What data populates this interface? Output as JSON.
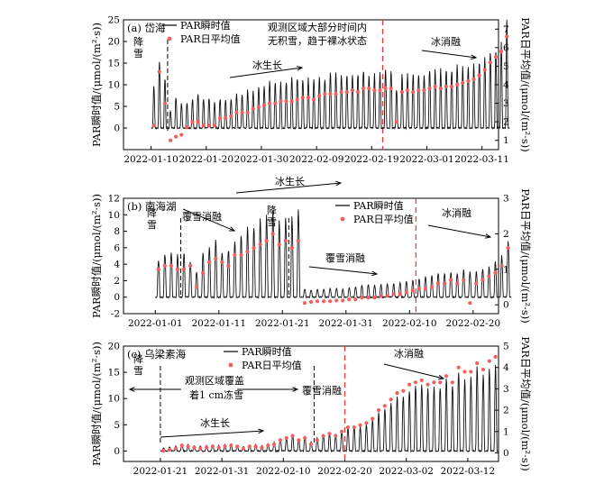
{
  "chart_data": [
    {
      "panel": "(a) 岱海",
      "type": "line",
      "ylabel_left": "PAR瞬时值/(μmol/(m²·s))",
      "ylabel_right": "PAR日平均值/(μmol/(m²·s))",
      "xlim": [
        "2022-01-05",
        "2022-03-14"
      ],
      "xticks": [
        "2022-01-10",
        "2022-01-20",
        "2022-01-30",
        "2022-02-09",
        "2022-02-19",
        "2022-03-01",
        "2022-03-11"
      ],
      "ylim_left": [
        -5,
        25
      ],
      "yticks_left": [
        0,
        5,
        10,
        15,
        20,
        25
      ],
      "ylim_right": [
        0.5,
        7.5
      ],
      "yticks_right": [
        1,
        2,
        3,
        4,
        5,
        6,
        7
      ],
      "start": "2022-01-10",
      "daily_peak": [
        10,
        16,
        12,
        4,
        7,
        6,
        6,
        7,
        8,
        7,
        7,
        6,
        7,
        7,
        7,
        8,
        8,
        9,
        9,
        10,
        10,
        11,
        11,
        11,
        11,
        12,
        12,
        12,
        12,
        12,
        12,
        12,
        13,
        13,
        13,
        13,
        13,
        13,
        14,
        13,
        13,
        13,
        14,
        14,
        9,
        13,
        13,
        13,
        13,
        13,
        14,
        14,
        14,
        14,
        14,
        15,
        15,
        15,
        15,
        16,
        17,
        18,
        19,
        20,
        26
      ],
      "daily_mean": [
        1.8,
        4.7,
        3.0,
        1.0,
        1.2,
        1.3,
        1.7,
        2.0,
        2.0,
        1.8,
        1.8,
        1.8,
        2.2,
        2.2,
        2.3,
        2.5,
        2.5,
        2.5,
        2.7,
        2.8,
        2.9,
        3.0,
        3.0,
        3.1,
        3.1,
        3.1,
        3.2,
        3.3,
        3.3,
        3.2,
        3.4,
        3.5,
        3.5,
        3.5,
        3.6,
        3.6,
        3.7,
        3.6,
        3.8,
        3.8,
        3.7,
        3.7,
        3.8,
        3.8,
        2.0,
        3.6,
        3.7,
        3.6,
        3.7,
        3.7,
        3.8,
        3.9,
        3.8,
        3.9,
        3.9,
        4.0,
        4.1,
        4.2,
        4.3,
        4.5,
        4.8,
        5.2,
        5.5,
        5.8,
        6.6
      ],
      "legend": [
        "PAR瞬时值",
        "PAR日平均值"
      ],
      "annotations": {
        "snow": "降雪",
        "growth": "冰生长",
        "note_line1": "观测区域大部分时间内",
        "note_line2": "无积雪，趋于裸冰状态",
        "melt": "冰消融"
      },
      "event_lines": {
        "black_dashed": [
          "2022-01-13"
        ],
        "red_dashed": [
          "2022-02-21"
        ]
      }
    },
    {
      "panel": "(b) 南海湖",
      "type": "line",
      "ylabel_left": "PAR瞬时值/(μmol/(m²·s))",
      "ylabel_right": "PAR日平均值/(μmol/(m²·s))",
      "xlim": [
        "2021-12-27",
        "2022-02-24"
      ],
      "xticks": [
        "2022-01-01",
        "2022-01-11",
        "2022-01-21",
        "2022-01-31",
        "2022-02-10",
        "2022-02-20"
      ],
      "ylim_left": [
        -2,
        12
      ],
      "yticks_left": [
        -2,
        0,
        2,
        4,
        6,
        8,
        10,
        12
      ],
      "ylim_right": [
        -0.25,
        3
      ],
      "yticks_right": [
        0,
        1,
        2,
        3
      ],
      "start": "2022-01-01",
      "daily_peak": [
        4.8,
        5.6,
        5.5,
        5.3,
        5.6,
        4.6,
        3.2,
        5.4,
        6.5,
        7.2,
        5.8,
        6.0,
        6.9,
        7.6,
        8.7,
        8.6,
        9.6,
        10.4,
        10.8,
        9.4,
        10.2,
        10.0,
        11.0,
        1.0,
        0.9,
        1.0,
        1.0,
        1.1,
        1.1,
        1.0,
        1.2,
        1.3,
        1.5,
        1.6,
        1.5,
        1.6,
        1.7,
        1.7,
        1.8,
        2.0,
        2.1,
        2.3,
        2.6,
        2.8,
        3.0,
        3.0,
        3.2,
        3.0,
        3.4,
        3.2,
        3.3,
        3.6,
        3.8,
        4.6,
        5.2,
        7.1
      ],
      "daily_mean": [
        1.0,
        1.1,
        1.1,
        1.0,
        1.0,
        1.1,
        0.5,
        0.9,
        1.2,
        1.3,
        1.2,
        1.1,
        1.4,
        1.4,
        1.5,
        1.6,
        1.7,
        1.8,
        2.0,
        1.7,
        1.8,
        1.6,
        1.8,
        0.05,
        0.08,
        0.1,
        0.1,
        0.1,
        0.12,
        0.12,
        0.15,
        0.15,
        0.2,
        0.2,
        0.2,
        0.25,
        0.25,
        0.3,
        0.3,
        0.35,
        0.4,
        0.45,
        0.45,
        0.5,
        0.6,
        0.6,
        0.7,
        0.6,
        0.7,
        0.05,
        0.6,
        0.7,
        0.8,
        0.9,
        1.1,
        1.6
      ],
      "legend": [
        "PAR瞬时值",
        "PAR日平均值"
      ],
      "annotations": {
        "snow1": "降雪",
        "snowmelt1": "覆雪消融",
        "growth": "冰生长",
        "snow2": "降雪",
        "snowmelt2": "覆雪消融",
        "melt": "冰消融"
      },
      "event_lines": {
        "black_dashed": [
          "2022-01-05",
          "2022-01-22"
        ],
        "red_dashed": [
          "2022-02-11"
        ]
      }
    },
    {
      "panel": "(c) 乌梁素海",
      "type": "line",
      "ylabel_left": "PAR瞬时值/(μmol/(m²·s))",
      "ylabel_right": "PAR日平均值/(μmol/(m²·s))",
      "xlim": [
        "2022-01-15",
        "2022-03-17"
      ],
      "xticks": [
        "2022-01-21",
        "2022-01-31",
        "2022-02-10",
        "2022-02-20",
        "2022-03-02",
        "2022-03-12"
      ],
      "ylim_left": [
        -2,
        20
      ],
      "yticks_left": [
        0,
        5,
        10,
        15,
        20
      ],
      "ylim_right": [
        -0.4,
        5
      ],
      "yticks_right": [
        0,
        1,
        2,
        3,
        4,
        5
      ],
      "start": "2022-01-21",
      "daily_peak": [
        0.6,
        0.8,
        1.0,
        1.4,
        1.3,
        1.0,
        1.0,
        1.1,
        1.2,
        1.1,
        1.3,
        1.5,
        1.2,
        0.9,
        1.2,
        1.3,
        1.1,
        1.5,
        1.7,
        2.5,
        2.6,
        3.2,
        2.4,
        2.9,
        1.8,
        2.6,
        3.2,
        3.6,
        3.2,
        4.0,
        4.5,
        4.6,
        4.8,
        5.3,
        6.3,
        7.5,
        8.5,
        9.6,
        10.8,
        11.2,
        12.3,
        12.8,
        13.1,
        12.5,
        13.0,
        12.9,
        14.0,
        12.8,
        15.6,
        14.6,
        14.7,
        16.2,
        15.0,
        16.6,
        17.0
      ],
      "daily_mean": [
        0.1,
        0.15,
        0.2,
        0.35,
        0.3,
        0.25,
        0.2,
        0.25,
        0.3,
        0.25,
        0.3,
        0.35,
        0.3,
        0.2,
        0.3,
        0.3,
        0.25,
        0.35,
        0.4,
        0.6,
        0.7,
        0.8,
        0.6,
        0.7,
        0.4,
        0.6,
        0.8,
        0.9,
        0.8,
        1.0,
        1.2,
        1.2,
        1.3,
        1.4,
        1.6,
        2.0,
        2.2,
        2.5,
        2.8,
        2.9,
        3.2,
        3.3,
        3.4,
        3.2,
        3.3,
        3.3,
        3.6,
        3.3,
        4.0,
        3.8,
        3.8,
        4.2,
        3.9,
        4.3,
        4.5
      ],
      "legend": [
        "PAR瞬时值",
        "PAR日平均值"
      ],
      "annotations": {
        "snow": "降雪",
        "note_line1": "观测区域覆盖",
        "note_line2": "着1 cm冻雪",
        "snowmelt": "覆雪消融",
        "growth": "冰生长",
        "melt": "冰消融"
      },
      "event_lines": {
        "black_dashed": [
          "2022-01-21",
          "2022-02-15"
        ],
        "red_dashed": [
          "2022-02-20"
        ]
      }
    }
  ]
}
